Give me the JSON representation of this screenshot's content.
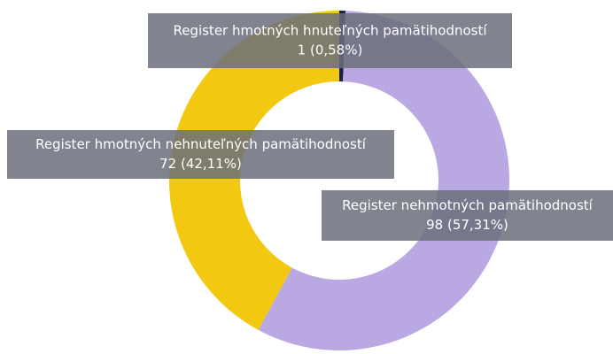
{
  "chart_data": {
    "type": "pie",
    "categories": [
      "Register hmotných hnuteľných pamätihodností",
      "Register nehmotných pamätihodností",
      "Register hmotných nehnuteľných pamätihodností"
    ],
    "values": [
      1,
      98,
      72
    ],
    "value_labels": [
      "1 (0,58%)",
      "98 (57,31%)",
      "72 (42,11%)"
    ],
    "colors": [
      "#1b1f4e",
      "#b9a8e2",
      "#f2c811"
    ],
    "donut": true
  }
}
